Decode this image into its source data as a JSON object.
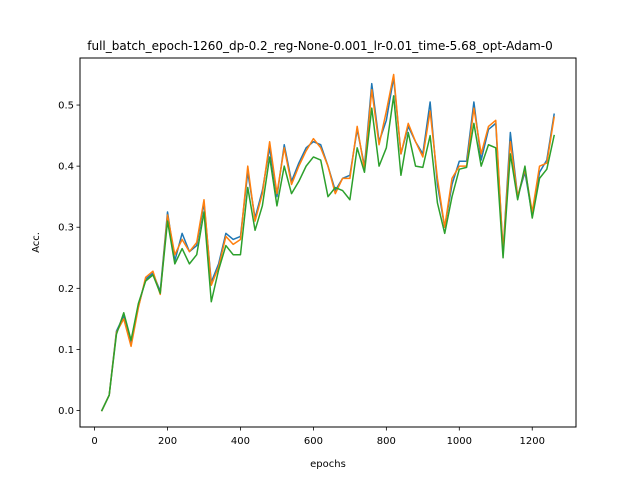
{
  "chart_data": {
    "type": "line",
    "title": "full_batch_epoch-1260_dp-0.2_reg-None-0.001_lr-0.01_time-5.68_opt-Adam-0",
    "xlabel": "epochs",
    "ylabel": "Acc.",
    "xlim": [
      -40,
      1320
    ],
    "ylim": [
      -0.027,
      0.577
    ],
    "grid": false,
    "xticks": [
      0,
      200,
      400,
      600,
      800,
      1000,
      1200
    ],
    "yticks": [
      0.0,
      0.1,
      0.2,
      0.3,
      0.4,
      0.5
    ],
    "x": [
      20,
      40,
      60,
      80,
      100,
      120,
      140,
      160,
      180,
      200,
      220,
      240,
      260,
      280,
      300,
      320,
      340,
      360,
      380,
      400,
      420,
      440,
      460,
      480,
      500,
      520,
      540,
      560,
      580,
      600,
      620,
      640,
      660,
      680,
      700,
      720,
      740,
      760,
      780,
      800,
      820,
      840,
      860,
      880,
      900,
      920,
      940,
      960,
      980,
      1000,
      1020,
      1040,
      1060,
      1080,
      1100,
      1120,
      1140,
      1160,
      1180,
      1200,
      1220,
      1240,
      1260
    ],
    "series": [
      {
        "color": "#1f77b4",
        "values": [
          0.0,
          0.025,
          0.13,
          0.155,
          0.11,
          0.17,
          0.215,
          0.225,
          0.195,
          0.325,
          0.245,
          0.29,
          0.26,
          0.27,
          0.34,
          0.21,
          0.24,
          0.29,
          0.28,
          0.285,
          0.39,
          0.315,
          0.36,
          0.43,
          0.35,
          0.435,
          0.375,
          0.405,
          0.43,
          0.44,
          0.435,
          0.4,
          0.36,
          0.38,
          0.385,
          0.46,
          0.4,
          0.535,
          0.44,
          0.475,
          0.545,
          0.42,
          0.465,
          0.44,
          0.42,
          0.505,
          0.37,
          0.3,
          0.37,
          0.408,
          0.408,
          0.505,
          0.41,
          0.46,
          0.47,
          0.26,
          0.455,
          0.35,
          0.39,
          0.32,
          0.39,
          0.41,
          0.485
        ]
      },
      {
        "color": "#ff7f0e",
        "values": [
          0.0,
          0.025,
          0.128,
          0.15,
          0.105,
          0.168,
          0.218,
          0.228,
          0.19,
          0.32,
          0.255,
          0.28,
          0.26,
          0.275,
          0.345,
          0.205,
          0.235,
          0.285,
          0.272,
          0.28,
          0.4,
          0.31,
          0.355,
          0.44,
          0.355,
          0.43,
          0.37,
          0.4,
          0.425,
          0.445,
          0.43,
          0.4,
          0.355,
          0.38,
          0.38,
          0.465,
          0.395,
          0.525,
          0.435,
          0.49,
          0.55,
          0.42,
          0.47,
          0.44,
          0.415,
          0.49,
          0.38,
          0.3,
          0.38,
          0.4,
          0.4,
          0.495,
          0.42,
          0.465,
          0.475,
          0.26,
          0.44,
          0.35,
          0.395,
          0.325,
          0.4,
          0.405,
          0.48
        ]
      },
      {
        "color": "#2ca02c",
        "values": [
          0.0,
          0.025,
          0.125,
          0.16,
          0.115,
          0.175,
          0.212,
          0.222,
          0.192,
          0.31,
          0.24,
          0.265,
          0.24,
          0.255,
          0.325,
          0.178,
          0.23,
          0.27,
          0.255,
          0.255,
          0.365,
          0.295,
          0.335,
          0.415,
          0.335,
          0.4,
          0.355,
          0.375,
          0.4,
          0.415,
          0.41,
          0.35,
          0.365,
          0.36,
          0.345,
          0.43,
          0.39,
          0.495,
          0.4,
          0.43,
          0.515,
          0.385,
          0.455,
          0.4,
          0.398,
          0.45,
          0.34,
          0.29,
          0.35,
          0.395,
          0.398,
          0.47,
          0.4,
          0.435,
          0.43,
          0.25,
          0.42,
          0.345,
          0.4,
          0.315,
          0.38,
          0.395,
          0.45
        ]
      }
    ]
  }
}
